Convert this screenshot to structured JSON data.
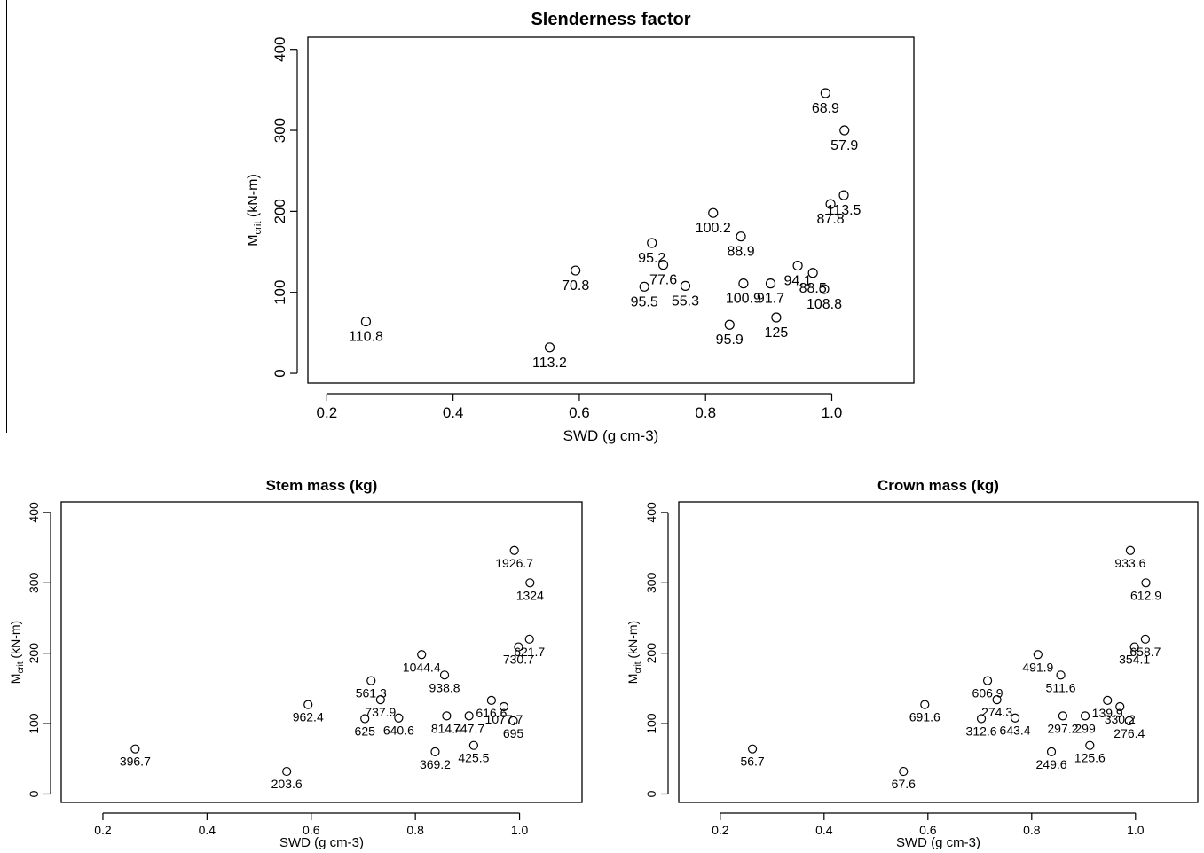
{
  "chart_data": [
    {
      "type": "scatter",
      "title": "Slenderness factor",
      "xlabel": "SWD (g cm-3)",
      "ylabel_main": "M",
      "ylabel_sub": "crit",
      "ylabel_unit": " (kN-m)",
      "xlim": [
        0.17,
        1.13
      ],
      "ylim": [
        -12,
        415
      ],
      "xticks": [
        0.2,
        0.4,
        0.6,
        0.8,
        1.0
      ],
      "xtick_labels": [
        "0.2",
        "0.4",
        "0.6",
        "0.8",
        "1.0"
      ],
      "yticks": [
        0,
        100,
        200,
        300,
        400
      ],
      "ytick_labels": [
        "0",
        "100",
        "200",
        "300",
        "400"
      ],
      "points": [
        {
          "x": 0.262,
          "y": 64,
          "label": "110.8"
        },
        {
          "x": 0.553,
          "y": 32,
          "label": "113.2"
        },
        {
          "x": 0.594,
          "y": 127,
          "label": "70.8"
        },
        {
          "x": 0.703,
          "y": 107,
          "label": "95.5"
        },
        {
          "x": 0.715,
          "y": 161,
          "label": "95.2"
        },
        {
          "x": 0.733,
          "y": 134,
          "label": "77.6"
        },
        {
          "x": 0.768,
          "y": 108,
          "label": "55.3"
        },
        {
          "x": 0.812,
          "y": 198,
          "label": "100.2"
        },
        {
          "x": 0.838,
          "y": 60,
          "label": "95.9"
        },
        {
          "x": 0.856,
          "y": 169,
          "label": "88.9"
        },
        {
          "x": 0.86,
          "y": 111,
          "label": "100.9"
        },
        {
          "x": 0.903,
          "y": 111,
          "label": "91.7"
        },
        {
          "x": 0.912,
          "y": 69,
          "label": "125"
        },
        {
          "x": 0.946,
          "y": 133,
          "label": "94.1"
        },
        {
          "x": 0.97,
          "y": 124,
          "label": "88.5"
        },
        {
          "x": 0.99,
          "y": 346,
          "label": "68.9"
        },
        {
          "x": 0.988,
          "y": 104,
          "label": "108.8"
        },
        {
          "x": 0.998,
          "y": 209,
          "label": "87.8"
        },
        {
          "x": 1.019,
          "y": 220,
          "label": "113.5"
        },
        {
          "x": 1.02,
          "y": 300,
          "label": "57.9"
        }
      ]
    },
    {
      "type": "scatter",
      "title": "Stem mass (kg)",
      "xlabel": "SWD (g cm-3)",
      "ylabel_main": "M",
      "ylabel_sub": "crit",
      "ylabel_unit": " (kN-m)",
      "xlim": [
        0.12,
        1.12
      ],
      "ylim": [
        -12,
        415
      ],
      "xticks": [
        0.2,
        0.4,
        0.6,
        0.8,
        1.0
      ],
      "xtick_labels": [
        "0.2",
        "0.4",
        "0.6",
        "0.8",
        "1.0"
      ],
      "yticks": [
        0,
        100,
        200,
        300,
        400
      ],
      "ytick_labels": [
        "0",
        "100",
        "200",
        "300",
        "400"
      ],
      "points": [
        {
          "x": 0.262,
          "y": 64,
          "label": "396.7"
        },
        {
          "x": 0.553,
          "y": 32,
          "label": "203.6"
        },
        {
          "x": 0.594,
          "y": 127,
          "label": "962.4"
        },
        {
          "x": 0.703,
          "y": 107,
          "label": "625"
        },
        {
          "x": 0.715,
          "y": 161,
          "label": "561.3"
        },
        {
          "x": 0.733,
          "y": 134,
          "label": "737.9"
        },
        {
          "x": 0.768,
          "y": 108,
          "label": "640.6"
        },
        {
          "x": 0.812,
          "y": 198,
          "label": "1044.4"
        },
        {
          "x": 0.838,
          "y": 60,
          "label": "369.2"
        },
        {
          "x": 0.856,
          "y": 169,
          "label": "938.8"
        },
        {
          "x": 0.86,
          "y": 111,
          "label": "814.4"
        },
        {
          "x": 0.903,
          "y": 111,
          "label": "747.7"
        },
        {
          "x": 0.912,
          "y": 69,
          "label": "425.5"
        },
        {
          "x": 0.946,
          "y": 133,
          "label": "616.6"
        },
        {
          "x": 0.97,
          "y": 124,
          "label": "1077.7"
        },
        {
          "x": 0.99,
          "y": 346,
          "label": "1926.7"
        },
        {
          "x": 0.988,
          "y": 104,
          "label": "695"
        },
        {
          "x": 0.998,
          "y": 209,
          "label": "730.7"
        },
        {
          "x": 1.019,
          "y": 220,
          "label": "621.7"
        },
        {
          "x": 1.02,
          "y": 300,
          "label": "1324"
        }
      ]
    },
    {
      "type": "scatter",
      "title": "Crown mass (kg)",
      "xlabel": "SWD (g cm-3)",
      "ylabel_main": "M",
      "ylabel_sub": "crit",
      "ylabel_unit": " (kN-m)",
      "xlim": [
        0.12,
        1.12
      ],
      "ylim": [
        -12,
        415
      ],
      "xticks": [
        0.2,
        0.4,
        0.6,
        0.8,
        1.0
      ],
      "xtick_labels": [
        "0.2",
        "0.4",
        "0.6",
        "0.8",
        "1.0"
      ],
      "yticks": [
        0,
        100,
        200,
        300,
        400
      ],
      "ytick_labels": [
        "0",
        "100",
        "200",
        "300",
        "400"
      ],
      "points": [
        {
          "x": 0.262,
          "y": 64,
          "label": "56.7"
        },
        {
          "x": 0.553,
          "y": 32,
          "label": "67.6"
        },
        {
          "x": 0.594,
          "y": 127,
          "label": "691.6"
        },
        {
          "x": 0.703,
          "y": 107,
          "label": "312.6"
        },
        {
          "x": 0.715,
          "y": 161,
          "label": "606.9"
        },
        {
          "x": 0.733,
          "y": 134,
          "label": "274.3"
        },
        {
          "x": 0.768,
          "y": 108,
          "label": "643.4"
        },
        {
          "x": 0.812,
          "y": 198,
          "label": "491.9"
        },
        {
          "x": 0.838,
          "y": 60,
          "label": "249.6"
        },
        {
          "x": 0.856,
          "y": 169,
          "label": "511.6"
        },
        {
          "x": 0.86,
          "y": 111,
          "label": "297.2"
        },
        {
          "x": 0.903,
          "y": 111,
          "label": "299"
        },
        {
          "x": 0.912,
          "y": 69,
          "label": "125.6"
        },
        {
          "x": 0.946,
          "y": 133,
          "label": "139.9"
        },
        {
          "x": 0.97,
          "y": 124,
          "label": "330.2"
        },
        {
          "x": 0.99,
          "y": 346,
          "label": "933.6"
        },
        {
          "x": 0.988,
          "y": 104,
          "label": "276.4"
        },
        {
          "x": 0.998,
          "y": 209,
          "label": "354.1"
        },
        {
          "x": 1.019,
          "y": 220,
          "label": "658.7"
        },
        {
          "x": 1.02,
          "y": 300,
          "label": "612.9"
        }
      ]
    }
  ]
}
